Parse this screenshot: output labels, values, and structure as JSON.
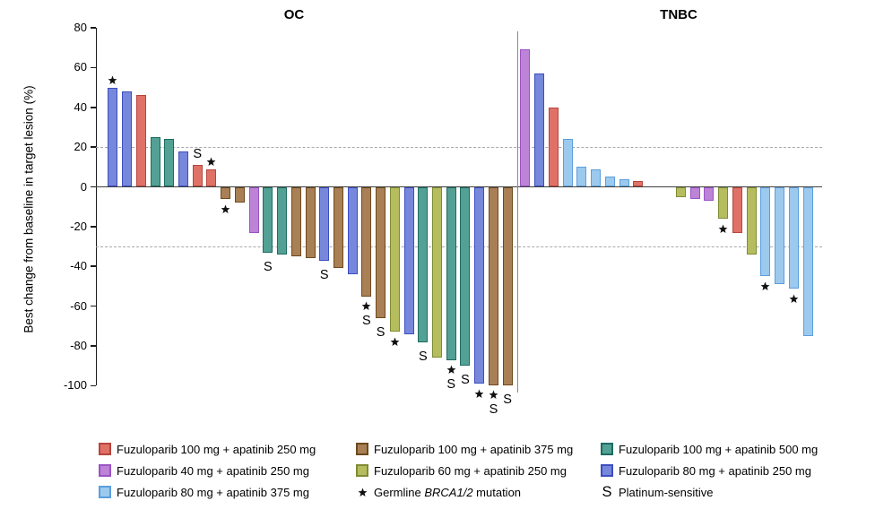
{
  "chart_data": {
    "type": "bar",
    "variant": "waterfall",
    "title_left": "OC",
    "title_right": "TNBC",
    "ylabel": "Best change from baseline in target lesion (%)",
    "ylim": [
      -100,
      80
    ],
    "yticks": [
      80,
      60,
      40,
      20,
      0,
      -20,
      -40,
      -60,
      -80,
      -100
    ],
    "reference_lines": [
      20,
      -30
    ],
    "grid": "off",
    "legend_position": "bottom",
    "panels": [
      {
        "title": "OC",
        "bars": [
          {
            "value": 50,
            "group": "blue",
            "mark": "*"
          },
          {
            "value": 48,
            "group": "blue",
            "mark": ""
          },
          {
            "value": 46,
            "group": "red",
            "mark": ""
          },
          {
            "value": 25,
            "group": "teal",
            "mark": ""
          },
          {
            "value": 24,
            "group": "teal",
            "mark": ""
          },
          {
            "value": 18,
            "group": "blue",
            "mark": ""
          },
          {
            "value": 11,
            "group": "red",
            "mark": "S"
          },
          {
            "value": 9,
            "group": "red",
            "mark": "*"
          },
          {
            "value": -6,
            "group": "brown",
            "mark": "*"
          },
          {
            "value": -8,
            "group": "brown",
            "mark": ""
          },
          {
            "value": -23,
            "group": "purple",
            "mark": ""
          },
          {
            "value": -33,
            "group": "teal",
            "mark": "S"
          },
          {
            "value": -34,
            "group": "teal",
            "mark": ""
          },
          {
            "value": -35,
            "group": "brown",
            "mark": ""
          },
          {
            "value": -36,
            "group": "brown",
            "mark": ""
          },
          {
            "value": -37,
            "group": "blue",
            "mark": "S"
          },
          {
            "value": -41,
            "group": "brown",
            "mark": ""
          },
          {
            "value": -44,
            "group": "blue",
            "mark": ""
          },
          {
            "value": -55,
            "group": "brown",
            "mark": "*S"
          },
          {
            "value": -66,
            "group": "brown",
            "mark": "S"
          },
          {
            "value": -73,
            "group": "olive",
            "mark": "*"
          },
          {
            "value": -74,
            "group": "blue",
            "mark": ""
          },
          {
            "value": -78,
            "group": "teal",
            "mark": "S"
          },
          {
            "value": -86,
            "group": "olive",
            "mark": ""
          },
          {
            "value": -87,
            "group": "teal",
            "mark": "*S"
          },
          {
            "value": -90,
            "group": "teal",
            "mark": "S"
          },
          {
            "value": -99,
            "group": "blue",
            "mark": "*"
          },
          {
            "value": -100,
            "group": "brown",
            "mark": "*S"
          },
          {
            "value": -100,
            "group": "brown",
            "mark": "S"
          }
        ]
      },
      {
        "title": "TNBC",
        "bars": [
          {
            "value": 69,
            "group": "purple",
            "mark": ""
          },
          {
            "value": 57,
            "group": "blue",
            "mark": ""
          },
          {
            "value": 40,
            "group": "red",
            "mark": ""
          },
          {
            "value": 24,
            "group": "skyblue",
            "mark": ""
          },
          {
            "value": 10,
            "group": "skyblue",
            "mark": ""
          },
          {
            "value": 9,
            "group": "skyblue",
            "mark": ""
          },
          {
            "value": 5,
            "group": "skyblue",
            "mark": ""
          },
          {
            "value": 4,
            "group": "skyblue",
            "mark": ""
          },
          {
            "value": 3,
            "group": "red",
            "mark": ""
          },
          {
            "value": 0,
            "group": "",
            "mark": ""
          },
          {
            "value": 0,
            "group": "",
            "mark": ""
          },
          {
            "value": -5,
            "group": "olive",
            "mark": ""
          },
          {
            "value": -6,
            "group": "purple",
            "mark": ""
          },
          {
            "value": -7,
            "group": "purple",
            "mark": ""
          },
          {
            "value": -16,
            "group": "olive",
            "mark": "*"
          },
          {
            "value": -23,
            "group": "red",
            "mark": ""
          },
          {
            "value": -34,
            "group": "olive",
            "mark": ""
          },
          {
            "value": -45,
            "group": "skyblue",
            "mark": "*"
          },
          {
            "value": -49,
            "group": "skyblue",
            "mark": ""
          },
          {
            "value": -51,
            "group": "skyblue",
            "mark": "*"
          },
          {
            "value": -75,
            "group": "skyblue",
            "mark": ""
          }
        ]
      }
    ],
    "palette": {
      "red": {
        "fill": "#DF7167",
        "stroke": "#B7463E"
      },
      "purple": {
        "fill": "#BC83D7",
        "stroke": "#9A53C5"
      },
      "skyblue": {
        "fill": "#9CC9EE",
        "stroke": "#5C9FDD"
      },
      "brown": {
        "fill": "#A97F55",
        "stroke": "#6E4A1F"
      },
      "olive": {
        "fill": "#B6BD5E",
        "stroke": "#7F8C33"
      },
      "teal": {
        "fill": "#53A095",
        "stroke": "#1E6C60"
      },
      "blue": {
        "fill": "#7787DB",
        "stroke": "#3D4EC0"
      }
    },
    "legend": [
      {
        "swatch": "red",
        "label": "Fuzuloparib 100 mg + apatinib 250 mg"
      },
      {
        "swatch": "brown",
        "label": "Fuzuloparib 100 mg + apatinib 375 mg"
      },
      {
        "swatch": "teal",
        "label": "Fuzuloparib 100 mg + apatinib 500 mg"
      },
      {
        "swatch": "purple",
        "label": "Fuzuloparib 40 mg + apatinib 250 mg"
      },
      {
        "swatch": "olive",
        "label": "Fuzuloparib 60 mg + apatinib 250 mg"
      },
      {
        "swatch": "blue",
        "label": "Fuzuloparib 80 mg + apatinib 250 mg"
      },
      {
        "swatch": "skyblue",
        "label": "Fuzuloparib 80 mg + apatinib 375 mg"
      },
      {
        "symbol": "*",
        "label_prefix": "Germline ",
        "label_italic": "BRCA1/2",
        "label_suffix": " mutation"
      },
      {
        "symbol": "S",
        "label": "Platinum-sensitive"
      }
    ]
  }
}
